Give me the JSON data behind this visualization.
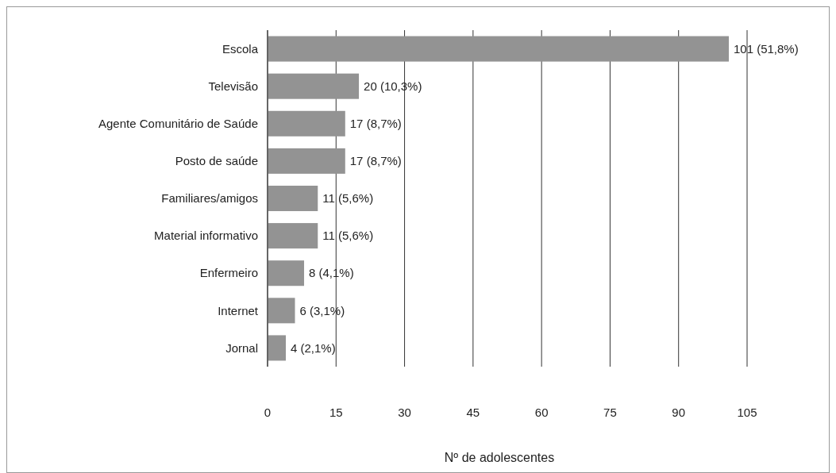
{
  "chart_data": {
    "type": "bar",
    "orientation": "horizontal",
    "xlabel": "Nº de adolescentes",
    "categories": [
      "Escola",
      "Televisão",
      "Agente Comunitário de Saúde",
      "Posto de saúde",
      "Familiares/amigos",
      "Material informativo",
      "Enfermeiro",
      "Internet",
      "Jornal"
    ],
    "values": [
      101,
      20,
      17,
      17,
      11,
      11,
      8,
      6,
      4
    ],
    "value_labels": [
      "101 (51,8%)",
      "20 (10,3%)",
      "17 (8,7%)",
      "17 (8,7%)",
      "11 (5,6%)",
      "11 (5,6%)",
      "8 (4,1%)",
      "6 (3,1%)",
      "4 (2,1%)"
    ],
    "color": "#939393",
    "xlim": [
      0,
      105
    ],
    "xticks": [
      0,
      15,
      30,
      45,
      60,
      75,
      90,
      105
    ],
    "grid": "x"
  }
}
